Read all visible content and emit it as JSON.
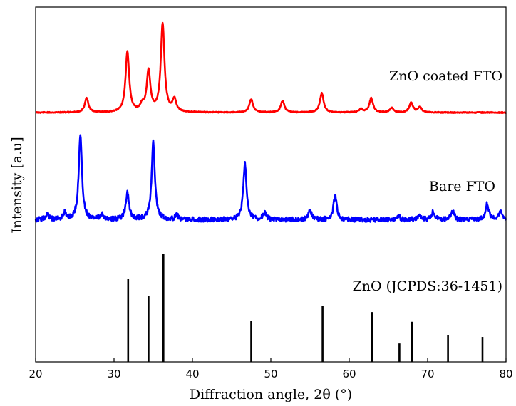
{
  "chart_data": {
    "type": "line",
    "xlabel": "Diffraction angle, 2θ (°)",
    "ylabel": "Intensity [a.u]",
    "xlim": [
      20,
      80
    ],
    "x_ticks": [
      20,
      30,
      40,
      50,
      60,
      70,
      80
    ],
    "legend": "none",
    "grid": false,
    "series": [
      {
        "name": "ZnO coated FTO",
        "color": "#ff0000",
        "baseline": 0,
        "peaks": [
          {
            "x": 26.5,
            "y": 0.16
          },
          {
            "x": 31.7,
            "y": 0.68
          },
          {
            "x": 33.6,
            "y": 0.07
          },
          {
            "x": 34.4,
            "y": 0.46
          },
          {
            "x": 36.2,
            "y": 1.0
          },
          {
            "x": 37.7,
            "y": 0.14
          },
          {
            "x": 47.5,
            "y": 0.15
          },
          {
            "x": 51.5,
            "y": 0.13
          },
          {
            "x": 56.5,
            "y": 0.22
          },
          {
            "x": 61.5,
            "y": 0.04
          },
          {
            "x": 62.8,
            "y": 0.16
          },
          {
            "x": 65.4,
            "y": 0.05
          },
          {
            "x": 67.9,
            "y": 0.11
          },
          {
            "x": 69.0,
            "y": 0.06
          }
        ]
      },
      {
        "name": "Bare FTO",
        "color": "#0000ff",
        "baseline": 0.08,
        "peaks": [
          {
            "x": 21.5,
            "y": 0.06
          },
          {
            "x": 23.7,
            "y": 0.08
          },
          {
            "x": 25.7,
            "y": 1.0
          },
          {
            "x": 28.5,
            "y": 0.06
          },
          {
            "x": 31.7,
            "y": 0.32
          },
          {
            "x": 35.0,
            "y": 0.92
          },
          {
            "x": 38.0,
            "y": 0.05
          },
          {
            "x": 46.7,
            "y": 0.67
          },
          {
            "x": 49.2,
            "y": 0.08
          },
          {
            "x": 55.0,
            "y": 0.11
          },
          {
            "x": 58.2,
            "y": 0.28
          },
          {
            "x": 66.3,
            "y": 0.04
          },
          {
            "x": 69.0,
            "y": 0.05
          },
          {
            "x": 70.7,
            "y": 0.09
          },
          {
            "x": 73.2,
            "y": 0.1
          },
          {
            "x": 77.6,
            "y": 0.19
          },
          {
            "x": 79.3,
            "y": 0.1
          }
        ]
      },
      {
        "name": "ZnO (JCPDS:36-1451)",
        "color": "#000000",
        "type": "stick",
        "sticks": [
          {
            "x": 31.8,
            "y": 0.77
          },
          {
            "x": 34.4,
            "y": 0.61
          },
          {
            "x": 36.3,
            "y": 1.0
          },
          {
            "x": 47.5,
            "y": 0.38
          },
          {
            "x": 56.6,
            "y": 0.52
          },
          {
            "x": 62.9,
            "y": 0.46
          },
          {
            "x": 66.4,
            "y": 0.17
          },
          {
            "x": 68.0,
            "y": 0.37
          },
          {
            "x": 72.6,
            "y": 0.25
          },
          {
            "x": 77.0,
            "y": 0.23
          }
        ]
      }
    ]
  }
}
